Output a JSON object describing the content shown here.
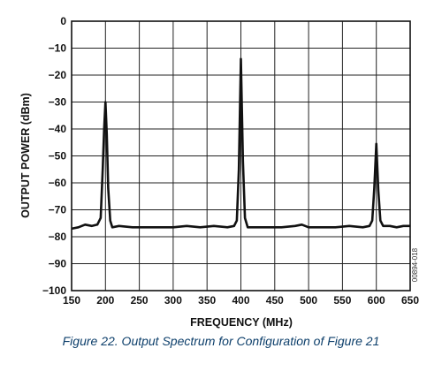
{
  "figure": {
    "caption": "Figure 22. Output Spectrum for Configuration of Figure 21",
    "side_code": "00894-018"
  },
  "chart_data": {
    "type": "line",
    "title": "",
    "xlabel": "FREQUENCY (MHz)",
    "ylabel": "OUTPUT POWER (dBm)",
    "xlim": [
      150,
      650
    ],
    "ylim": [
      -100,
      0
    ],
    "xticks": [
      150,
      200,
      250,
      300,
      350,
      400,
      450,
      500,
      550,
      600,
      650
    ],
    "yticks": [
      0,
      -10,
      -20,
      -30,
      -40,
      -50,
      -60,
      -70,
      -80,
      -90,
      -100
    ],
    "grid": true,
    "line_color": "#111111",
    "series": [
      {
        "x": [
          150,
          160,
          170,
          180,
          188,
          193,
          196,
          198,
          200,
          202,
          204,
          207,
          210,
          220,
          240,
          260,
          280,
          300,
          320,
          340,
          360,
          380,
          390,
          394,
          397,
          400,
          403,
          406,
          410,
          420,
          440,
          460,
          480,
          490,
          495,
          500,
          520,
          540,
          560,
          580,
          590,
          594,
          597,
          600,
          603,
          606,
          610,
          620,
          630,
          640,
          650
        ],
        "y": [
          -77,
          -76.5,
          -75.5,
          -76,
          -75.5,
          -73,
          -55,
          -40,
          -30,
          -42,
          -62,
          -74,
          -76.5,
          -76,
          -76.5,
          -76.5,
          -76.5,
          -76.5,
          -76,
          -76.5,
          -76,
          -76.5,
          -76,
          -74,
          -55,
          -14,
          -52,
          -73,
          -76.5,
          -76.5,
          -76.5,
          -76.5,
          -76,
          -75.5,
          -76,
          -76.5,
          -76.5,
          -76.5,
          -76,
          -76.5,
          -76,
          -74,
          -62,
          -45.5,
          -63,
          -74,
          -76,
          -76,
          -76.5,
          -76,
          -76
        ]
      }
    ]
  }
}
